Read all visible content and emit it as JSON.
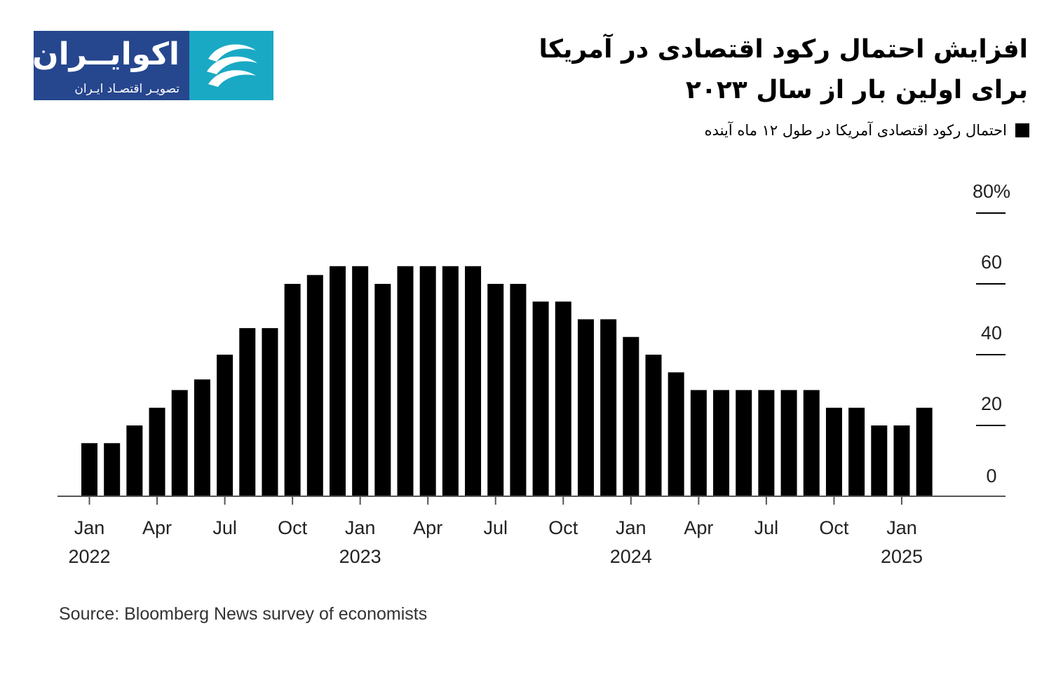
{
  "brand": {
    "name": "اکوایــران",
    "tagline": "تصویـر اقتصـاد ایـران",
    "colors": {
      "navy": "#26468e",
      "teal": "#1aa9c4"
    }
  },
  "title_line1": "افزایش احتمال رکود اقتصادی در آمریکا",
  "title_line2": "برای اولین بار از سال ۲۰۲۳",
  "legend_label": "احتمال رکود اقتصادی آمریکا در طول ۱۲ ماه آینده",
  "source": "Source: Bloomberg News survey of economists",
  "chart_data": {
    "type": "bar",
    "bar_color": "#000000",
    "y_axis": {
      "side": "right",
      "ylim": [
        0,
        80
      ],
      "ticks": [
        {
          "value": 80,
          "label": "80%"
        },
        {
          "value": 60,
          "label": "60"
        },
        {
          "value": 40,
          "label": "40"
        },
        {
          "value": 20,
          "label": "20"
        },
        {
          "value": 0,
          "label": "0"
        }
      ]
    },
    "x_ticks": [
      {
        "index": 0,
        "label": "Jan",
        "year": "2022"
      },
      {
        "index": 3,
        "label": "Apr"
      },
      {
        "index": 6,
        "label": "Jul"
      },
      {
        "index": 9,
        "label": "Oct"
      },
      {
        "index": 12,
        "label": "Jan",
        "year": "2023"
      },
      {
        "index": 15,
        "label": "Apr"
      },
      {
        "index": 18,
        "label": "Jul"
      },
      {
        "index": 21,
        "label": "Oct"
      },
      {
        "index": 24,
        "label": "Jan",
        "year": "2024"
      },
      {
        "index": 27,
        "label": "Apr"
      },
      {
        "index": 30,
        "label": "Jul"
      },
      {
        "index": 33,
        "label": "Oct"
      },
      {
        "index": 36,
        "label": "Jan",
        "year": "2025"
      }
    ],
    "values": [
      15,
      15,
      20,
      25,
      30,
      33,
      40,
      47.5,
      47.5,
      60,
      62.5,
      65,
      65,
      60,
      65,
      65,
      65,
      65,
      60,
      60,
      55,
      55,
      50,
      50,
      45,
      40,
      35,
      30,
      30,
      30,
      30,
      30,
      30,
      25,
      25,
      20,
      20,
      25
    ]
  }
}
